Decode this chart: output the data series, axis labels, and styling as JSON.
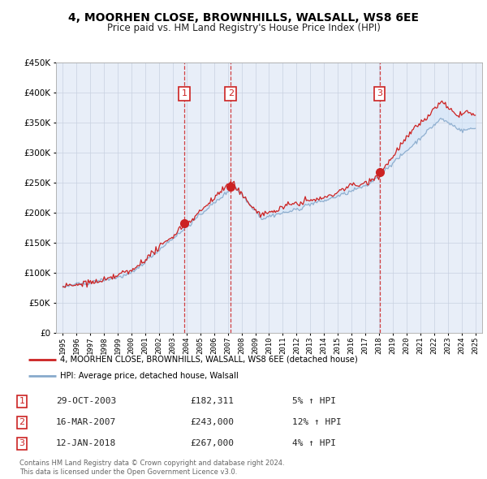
{
  "title": "4, MOORHEN CLOSE, BROWNHILLS, WALSALL, WS8 6EE",
  "subtitle": "Price paid vs. HM Land Registry's House Price Index (HPI)",
  "legend_label_red": "4, MOORHEN CLOSE, BROWNHILLS, WALSALL, WS8 6EE (detached house)",
  "legend_label_blue": "HPI: Average price, detached house, Walsall",
  "footer1": "Contains HM Land Registry data © Crown copyright and database right 2024.",
  "footer2": "This data is licensed under the Open Government Licence v3.0.",
  "sale_events": [
    {
      "num": 1,
      "date": "29-OCT-2003",
      "price": "£182,311",
      "hpi": "5% ↑ HPI",
      "year": 2003.83,
      "price_val": 182311
    },
    {
      "num": 2,
      "date": "16-MAR-2007",
      "price": "£243,000",
      "hpi": "12% ↑ HPI",
      "year": 2007.21,
      "price_val": 243000
    },
    {
      "num": 3,
      "date": "12-JAN-2018",
      "price": "£267,000",
      "hpi": "4% ↑ HPI",
      "year": 2018.04,
      "price_val": 267000
    }
  ],
  "xlim": [
    1994.5,
    2025.5
  ],
  "ylim": [
    0,
    450000
  ],
  "yticks": [
    0,
    50000,
    100000,
    150000,
    200000,
    250000,
    300000,
    350000,
    400000,
    450000
  ],
  "xticks": [
    1995,
    1996,
    1997,
    1998,
    1999,
    2000,
    2001,
    2002,
    2003,
    2004,
    2005,
    2006,
    2007,
    2008,
    2009,
    2010,
    2011,
    2012,
    2013,
    2014,
    2015,
    2016,
    2017,
    2018,
    2019,
    2020,
    2021,
    2022,
    2023,
    2024,
    2025
  ],
  "bg_color": "#ffffff",
  "chart_bg_color": "#e8eef8",
  "grid_color": "#c8d0e0",
  "red_color": "#cc2222",
  "blue_color": "#88aacc",
  "fill_color": "#d0e4f8",
  "event_line_color": "#cc2222",
  "event_box_color": "#cc2222",
  "seed": 42
}
